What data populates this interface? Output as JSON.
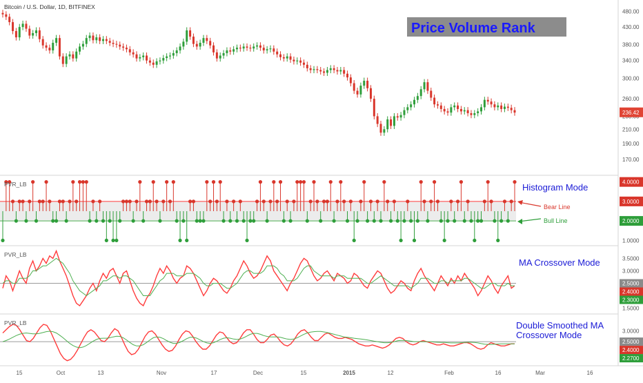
{
  "header": {
    "symbol_title": "Bitcoin / U.S. Dollar, 1D, BITFINEX",
    "overlay_title": "Price Volume Rank"
  },
  "colors": {
    "up": "#2e9e3a",
    "down": "#d9362b",
    "red_line": "#ff3b3b",
    "green_line": "#4caf50",
    "overlay_bg": "#8c8c8c",
    "overlay_text": "#1a1aff",
    "annotation": "#1a1ad6",
    "price_tag": "#e04434"
  },
  "chart_data": [
    {
      "type": "candlestick",
      "name": "Bitcoin / U.S. Dollar, 1D, BITFINEX",
      "ylim": [
        155,
        500
      ],
      "scale": "log",
      "yticks": [
        "480.00",
        "430.00",
        "380.00",
        "340.00",
        "300.00",
        "260.00",
        "230.00",
        "210.00",
        "190.00",
        "170.00"
      ],
      "last_price": "236.42",
      "x_labels": [
        "15",
        "Oct",
        "13",
        "Nov",
        "17",
        "Dec",
        "15",
        "2015",
        "12",
        "Feb",
        "16",
        "Mar",
        "16"
      ],
      "closes": [
        470,
        462,
        445,
        418,
        400,
        430,
        440,
        425,
        405,
        412,
        420,
        395,
        378,
        372,
        365,
        385,
        398,
        350,
        332,
        350,
        355,
        345,
        362,
        375,
        382,
        398,
        405,
        392,
        400,
        390,
        395,
        390,
        385,
        382,
        380,
        375,
        372,
        368,
        360,
        355,
        345,
        348,
        352,
        340,
        335,
        330,
        338,
        340,
        346,
        350,
        352,
        358,
        365,
        375,
        388,
        420,
        402,
        382,
        375,
        385,
        398,
        390,
        378,
        360,
        345,
        352,
        358,
        365,
        362,
        368,
        372,
        370,
        375,
        372,
        370,
        375,
        378,
        372,
        365,
        368,
        370,
        362,
        355,
        348,
        345,
        350,
        342,
        338,
        340,
        335,
        330,
        322,
        318,
        320,
        318,
        315,
        312,
        318,
        322,
        318,
        315,
        318,
        310,
        302,
        290,
        275,
        268,
        285,
        295,
        280,
        260,
        230,
        218,
        205,
        210,
        225,
        215,
        230,
        228,
        232,
        240,
        245,
        250,
        258,
        265,
        278,
        292,
        275,
        262,
        250,
        248,
        242,
        238,
        236,
        245,
        248,
        242,
        238,
        240,
        235,
        232,
        235,
        238,
        245,
        258,
        255,
        250,
        245,
        248,
        242,
        246,
        244,
        240,
        236
      ]
    },
    {
      "type": "lollipop",
      "name": "PVR_LB",
      "annotation": "Histogram Mode",
      "ylim": [
        0.8,
        4.2
      ],
      "yticks": [
        "4.0000",
        "3.0000",
        "2.0000",
        "1.0000"
      ],
      "bear_line": 3.0,
      "bull_line": 2.0,
      "bear_label": "Bear Line",
      "bull_label": "Bull Line",
      "tags": {
        "a": "4.0000",
        "b": "3.0000",
        "c": "2.0000"
      },
      "values": [
        1,
        4,
        4,
        3,
        2,
        3,
        3,
        2,
        3,
        4,
        2,
        3,
        3,
        4,
        3,
        2,
        2,
        3,
        3,
        2,
        3,
        4,
        3,
        4,
        4,
        4,
        2,
        3,
        2,
        3,
        2,
        1,
        2,
        1,
        1,
        2,
        3,
        3,
        3,
        2,
        3,
        4,
        2,
        3,
        3,
        4,
        3,
        2,
        3,
        4,
        3,
        4,
        2,
        1,
        2,
        1,
        3,
        3,
        2,
        2,
        2,
        4,
        3,
        4,
        3,
        4,
        2,
        3,
        2,
        3,
        2,
        3,
        2,
        1,
        2,
        2,
        3,
        4,
        3,
        2,
        3,
        4,
        3,
        4,
        2,
        3,
        2,
        3,
        4,
        4,
        4,
        2,
        3,
        4,
        3,
        2,
        3,
        3,
        4,
        2,
        3,
        4,
        3,
        2,
        3,
        1,
        2,
        3,
        4,
        2,
        3,
        2,
        3,
        2,
        4,
        3,
        2,
        3,
        2,
        1,
        2,
        3,
        2,
        1,
        2,
        4,
        3,
        2,
        3,
        4,
        3,
        2,
        1,
        2,
        3,
        2,
        3,
        4,
        2,
        3,
        2,
        1,
        2,
        2,
        3,
        4,
        3,
        2,
        1,
        2,
        3,
        2,
        3,
        4
      ]
    },
    {
      "type": "line",
      "name": "PVR_LB",
      "annotation": "MA Crossover Mode",
      "ylim": [
        1.35,
        3.9
      ],
      "yticks": [
        "3.5000",
        "3.0000",
        "2.5000",
        "2.0000",
        "1.5000"
      ],
      "hline": 2.5,
      "tags": {
        "a": "2.5000",
        "b": "2.4000",
        "c": "2.3000"
      },
      "series": [
        {
          "values": [
            2.3,
            2.8,
            2.6,
            2.2,
            2.6,
            3.0,
            2.7,
            2.5,
            3.1,
            3.4,
            3.0,
            3.2,
            3.5,
            3.3,
            3.6,
            3.5,
            3.8,
            3.4,
            3.1,
            2.8,
            2.4,
            2.0,
            1.7,
            1.6,
            1.8,
            2.0,
            2.3,
            2.5,
            2.2,
            2.6,
            2.9,
            2.7,
            3.0,
            3.1,
            2.8,
            2.5,
            2.9,
            3.0,
            2.6,
            2.2,
            1.9,
            1.7,
            1.6,
            1.9,
            2.1,
            2.4,
            2.8,
            3.1,
            2.9,
            3.2,
            3.0,
            2.7,
            2.5,
            2.7,
            2.8,
            3.2,
            3.1,
            2.9,
            2.6,
            2.3,
            2.0,
            2.2,
            2.5,
            2.7,
            2.6,
            2.4,
            2.2,
            2.1,
            2.3,
            2.6,
            2.8,
            3.1,
            3.4,
            3.2,
            2.9,
            2.7,
            2.8,
            3.0,
            3.3,
            3.6,
            3.4,
            3.0,
            2.8,
            2.6,
            2.4,
            2.2,
            2.5,
            2.7,
            3.0,
            3.3,
            3.5,
            3.4,
            3.1,
            2.8,
            2.6,
            2.7,
            2.9,
            3.0,
            2.8,
            2.6,
            2.9,
            2.8,
            2.7,
            2.5,
            2.6,
            2.9,
            2.8,
            2.6,
            2.4,
            2.3,
            2.6,
            2.8,
            3.0,
            2.9,
            2.6,
            2.3,
            2.1,
            2.2,
            2.4,
            2.6,
            2.5,
            2.3,
            2.2,
            2.6,
            2.9,
            3.1,
            2.8,
            2.6,
            2.4,
            2.2,
            2.5,
            2.8,
            2.6,
            2.4,
            2.7,
            2.5,
            2.8,
            2.6,
            2.9,
            2.7,
            2.5,
            2.3,
            2.0,
            2.2,
            2.5,
            2.8,
            2.6,
            2.3,
            2.1,
            2.4,
            2.6,
            2.8,
            2.3,
            2.4
          ]
        },
        {
          "values": [
            2.5,
            2.6,
            2.6,
            2.5,
            2.5,
            2.7,
            2.7,
            2.7,
            2.8,
            3.0,
            3.0,
            3.1,
            3.2,
            3.2,
            3.3,
            3.4,
            3.5,
            3.4,
            3.3,
            3.1,
            2.9,
            2.6,
            2.4,
            2.2,
            2.1,
            2.0,
            2.1,
            2.2,
            2.3,
            2.4,
            2.6,
            2.6,
            2.7,
            2.8,
            2.8,
            2.7,
            2.8,
            2.8,
            2.7,
            2.6,
            2.4,
            2.2,
            2.0,
            2.0,
            2.0,
            2.2,
            2.4,
            2.6,
            2.7,
            2.9,
            2.9,
            2.9,
            2.8,
            2.8,
            2.8,
            2.9,
            2.9,
            2.9,
            2.8,
            2.7,
            2.5,
            2.4,
            2.4,
            2.5,
            2.5,
            2.5,
            2.4,
            2.3,
            2.3,
            2.4,
            2.5,
            2.7,
            2.9,
            3.0,
            3.0,
            2.9,
            2.9,
            2.9,
            3.0,
            3.2,
            3.2,
            3.2,
            3.1,
            2.9,
            2.8,
            2.6,
            2.6,
            2.6,
            2.7,
            2.9,
            3.1,
            3.2,
            3.2,
            3.0,
            2.9,
            2.8,
            2.8,
            2.8,
            2.8,
            2.7,
            2.8,
            2.8,
            2.8,
            2.7,
            2.7,
            2.7,
            2.7,
            2.7,
            2.6,
            2.5,
            2.5,
            2.6,
            2.7,
            2.8,
            2.7,
            2.6,
            2.5,
            2.4,
            2.4,
            2.4,
            2.4,
            2.4,
            2.3,
            2.4,
            2.5,
            2.7,
            2.7,
            2.7,
            2.6,
            2.5,
            2.5,
            2.6,
            2.6,
            2.5,
            2.6,
            2.6,
            2.6,
            2.6,
            2.7,
            2.7,
            2.6,
            2.5,
            2.4,
            2.3,
            2.3,
            2.4,
            2.5,
            2.5,
            2.4,
            2.4,
            2.4,
            2.5,
            2.4,
            2.4
          ]
        }
      ]
    },
    {
      "type": "line",
      "name": "PVR_LB",
      "annotation": "Double Smoothed MA Crossover Mode",
      "ylim": [
        1.45,
        3.65
      ],
      "yticks": [
        "3.0000",
        "2.5000",
        "2.0000"
      ],
      "hline": 2.5,
      "tags": {
        "a": "2.5000",
        "b": "2.4000",
        "c": "2.2700"
      },
      "series": [
        {
          "values": [
            2.9,
            3.05,
            3.2,
            3.3,
            3.25,
            3.05,
            2.8,
            2.55,
            2.5,
            2.65,
            2.9,
            3.15,
            3.3,
            3.25,
            3.0,
            2.65,
            2.3,
            1.95,
            1.72,
            1.62,
            1.68,
            1.85,
            2.1,
            2.4,
            2.7,
            2.95,
            3.05,
            2.95,
            2.75,
            2.55,
            2.5,
            2.65,
            2.9,
            3.1,
            3.0,
            2.7,
            2.35,
            2.05,
            1.9,
            1.95,
            2.15,
            2.45,
            2.75,
            2.95,
            3.0,
            2.85,
            2.6,
            2.35,
            2.15,
            2.05,
            2.1,
            2.3,
            2.6,
            2.85,
            3.0,
            2.95,
            2.75,
            2.5,
            2.3,
            2.15,
            2.15,
            2.3,
            2.55,
            2.8,
            2.95,
            2.9,
            2.7,
            2.5,
            2.4,
            2.45,
            2.65,
            2.9,
            3.05,
            3.05,
            2.85,
            2.6,
            2.45,
            2.45,
            2.6,
            2.8,
            2.85,
            2.7,
            2.5,
            2.35,
            2.3,
            2.4,
            2.6,
            2.85,
            3.0,
            3.05,
            2.9,
            2.7,
            2.55,
            2.55,
            2.7,
            2.85,
            2.9,
            2.8,
            2.7,
            2.65,
            2.65,
            2.7,
            2.65,
            2.6,
            2.5,
            2.4,
            2.35,
            2.3,
            2.3,
            2.35,
            2.3,
            2.25,
            2.2,
            2.25,
            2.35,
            2.5,
            2.65,
            2.7,
            2.65,
            2.5,
            2.4,
            2.35,
            2.4,
            2.5,
            2.55,
            2.5,
            2.45,
            2.4,
            2.35,
            2.35,
            2.4,
            2.35,
            2.3,
            2.3,
            2.35,
            2.4,
            2.45,
            2.45,
            2.4,
            2.3,
            2.2,
            2.15,
            2.2,
            2.35,
            2.45,
            2.4,
            2.35,
            2.3,
            2.3,
            2.35,
            2.4,
            2.4
          ]
        },
        {
          "values": [
            2.5,
            2.55,
            2.62,
            2.7,
            2.78,
            2.84,
            2.88,
            2.9,
            2.88,
            2.86,
            2.86,
            2.88,
            2.92,
            2.96,
            2.98,
            2.96,
            2.9,
            2.8,
            2.68,
            2.55,
            2.42,
            2.32,
            2.25,
            2.22,
            2.25,
            2.32,
            2.42,
            2.52,
            2.6,
            2.65,
            2.66,
            2.66,
            2.68,
            2.72,
            2.75,
            2.74,
            2.68,
            2.58,
            2.46,
            2.36,
            2.3,
            2.3,
            2.36,
            2.46,
            2.58,
            2.68,
            2.72,
            2.7,
            2.64,
            2.55,
            2.47,
            2.42,
            2.42,
            2.47,
            2.55,
            2.64,
            2.7,
            2.7,
            2.66,
            2.58,
            2.5,
            2.44,
            2.42,
            2.45,
            2.52,
            2.6,
            2.66,
            2.68,
            2.66,
            2.62,
            2.6,
            2.62,
            2.68,
            2.76,
            2.84,
            2.88,
            2.88,
            2.84,
            2.78,
            2.74,
            2.72,
            2.72,
            2.72,
            2.7,
            2.66,
            2.62,
            2.6,
            2.62,
            2.68,
            2.76,
            2.84,
            2.9,
            2.94,
            2.96,
            2.97,
            2.97,
            2.95,
            2.92,
            2.88,
            2.84,
            2.8,
            2.76,
            2.72,
            2.7,
            2.68,
            2.66,
            2.64,
            2.62,
            2.6,
            2.58,
            2.55,
            2.52,
            2.5,
            2.47,
            2.45,
            2.45,
            2.46,
            2.5,
            2.54,
            2.56,
            2.56,
            2.54,
            2.52,
            2.5,
            2.5,
            2.5,
            2.5,
            2.5,
            2.5,
            2.48,
            2.47,
            2.46,
            2.46,
            2.45,
            2.44,
            2.44,
            2.44,
            2.45,
            2.46,
            2.47,
            2.47,
            2.46,
            2.44,
            2.41,
            2.38,
            2.37,
            2.37,
            2.38,
            2.39,
            2.4,
            2.4,
            2.4,
            2.4,
            2.4
          ]
        }
      ]
    }
  ]
}
